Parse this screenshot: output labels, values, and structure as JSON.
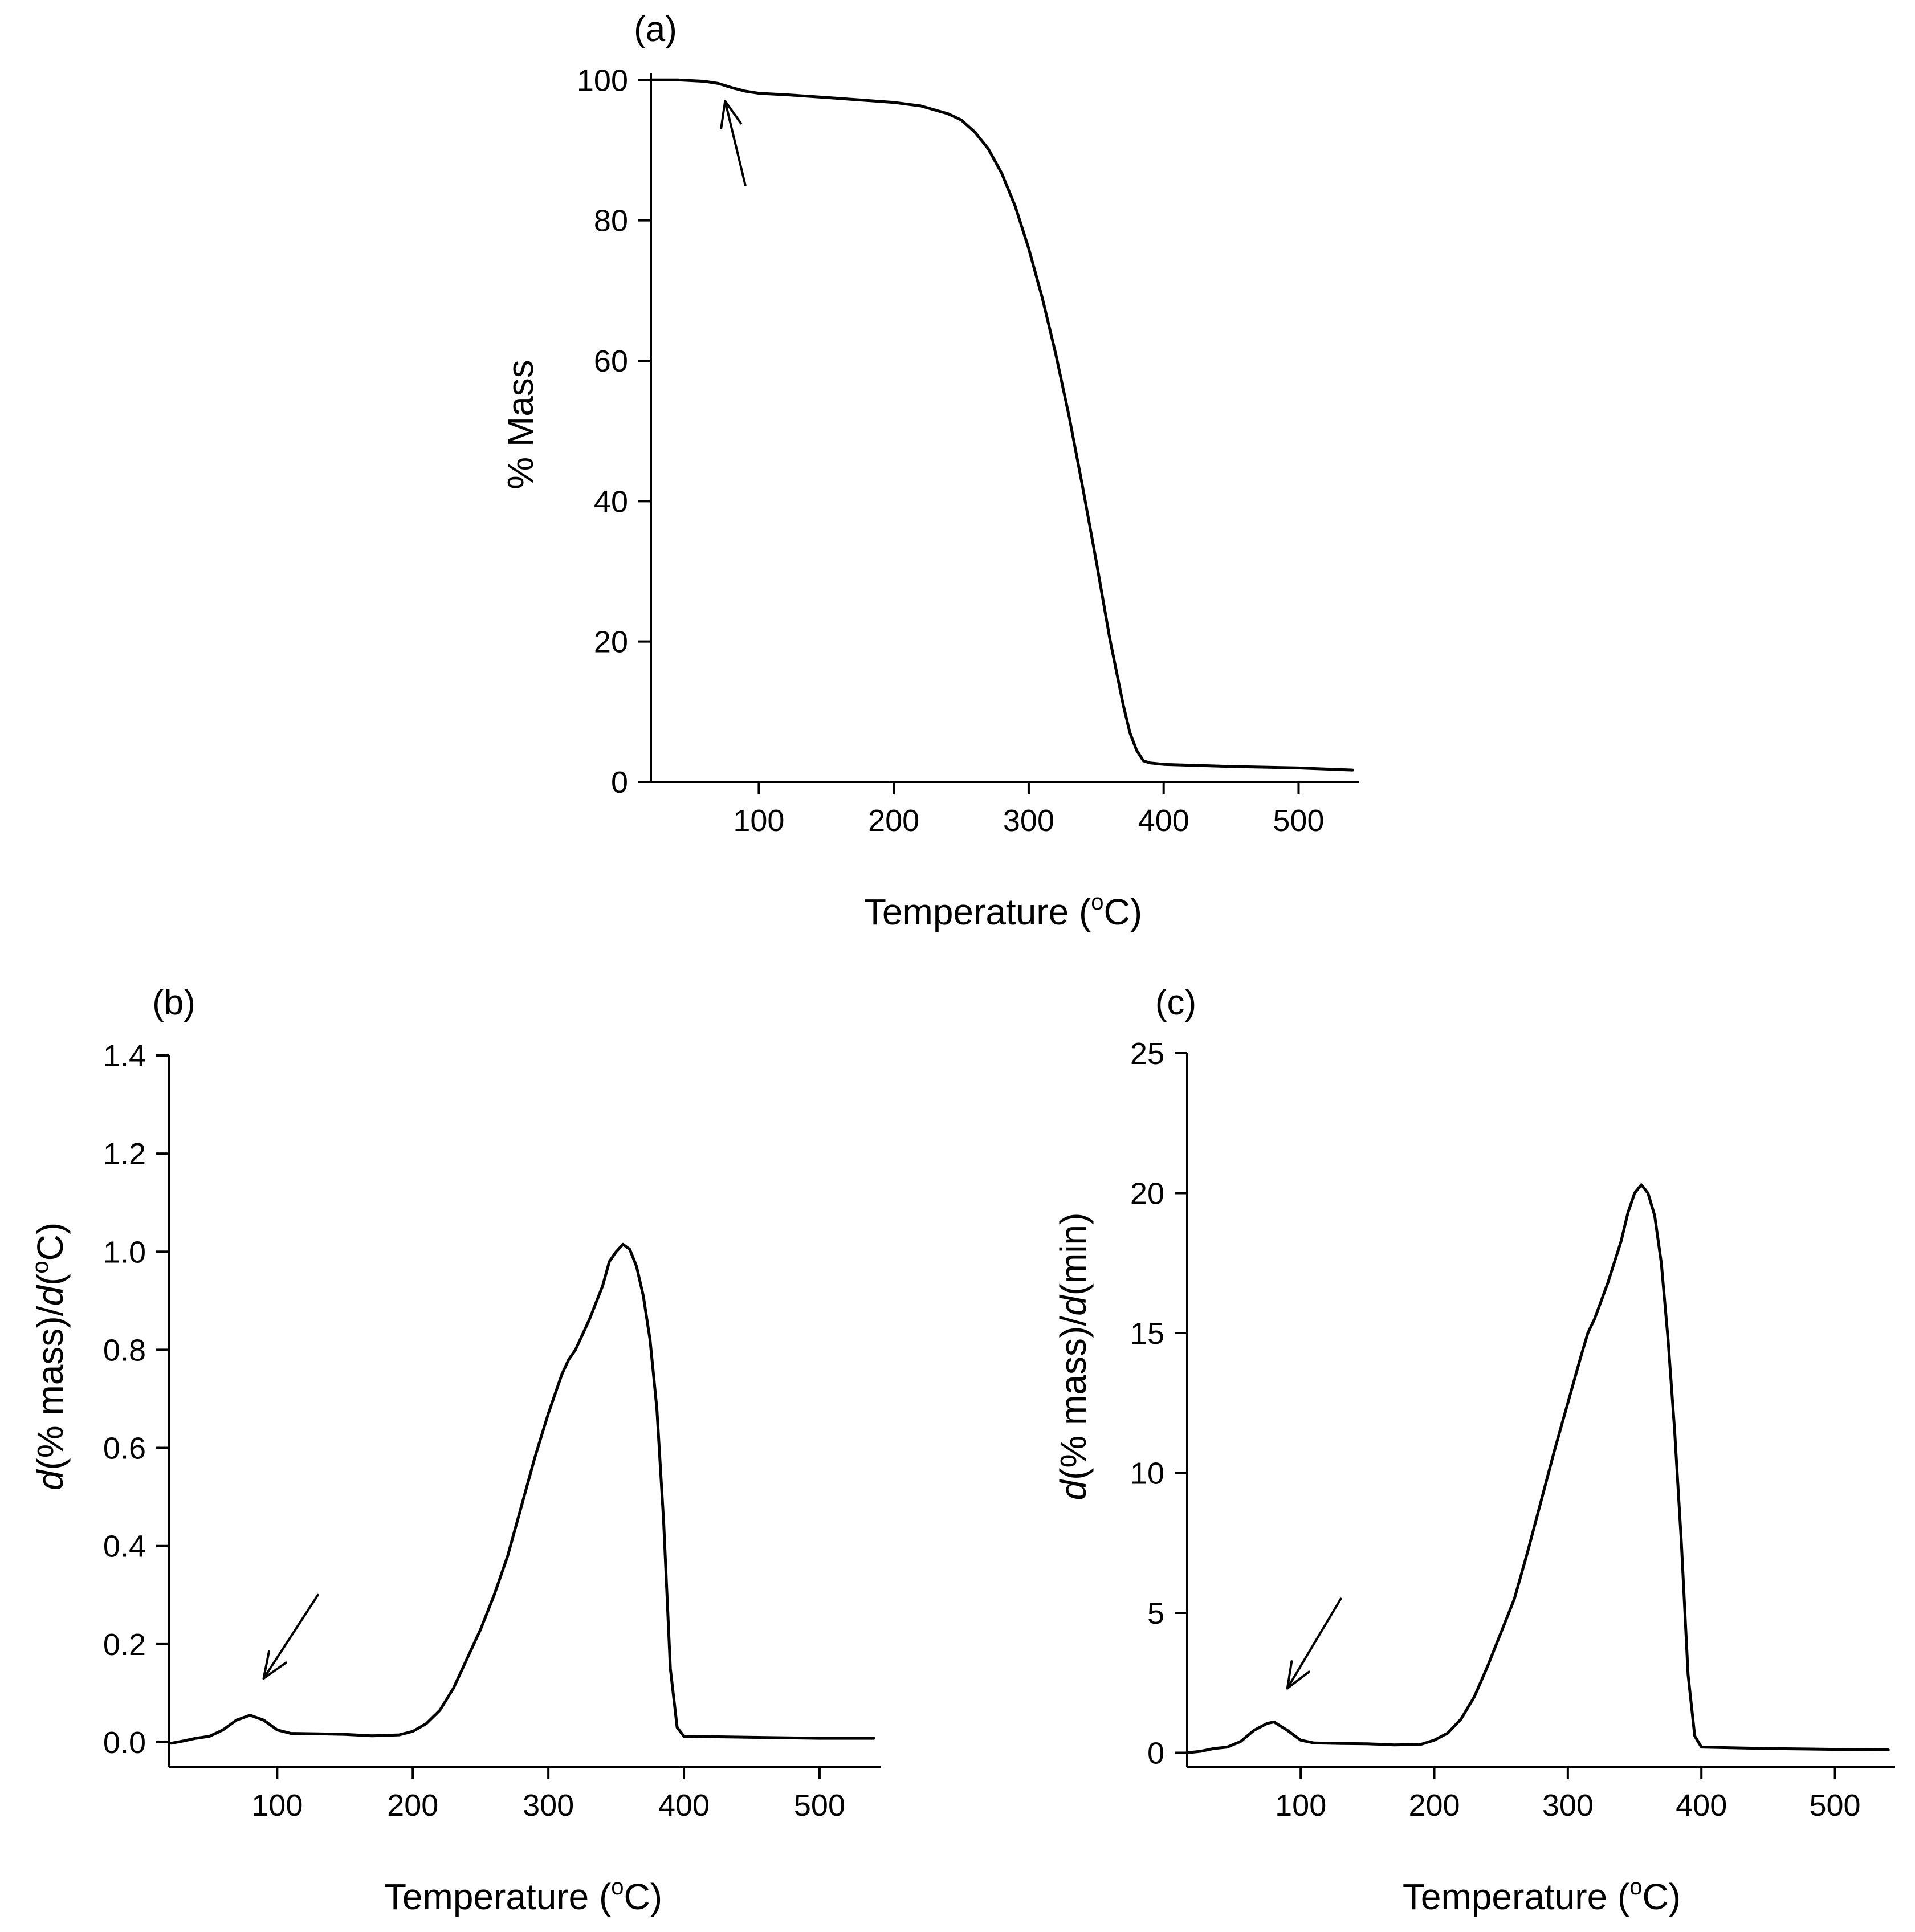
{
  "chart_data": [
    {
      "id": "a",
      "type": "line",
      "panel_label": "(a)",
      "xlabel": "Temperature (",
      "xlabel_sup": "o",
      "xlabel_end": "C)",
      "ylabel": "% Mass",
      "xlim": [
        20,
        545
      ],
      "ylim": [
        0,
        101
      ],
      "xticks": [
        100,
        200,
        300,
        400,
        500
      ],
      "xtick_labels": [
        "100",
        "200",
        "300",
        "400",
        "500"
      ],
      "yticks": [
        0,
        20,
        40,
        60,
        80,
        100
      ],
      "ytick_labels": [
        "0",
        "20",
        "40",
        "60",
        "80",
        "100"
      ],
      "series": [
        {
          "name": "% Mass",
          "x": [
            20,
            40,
            60,
            70,
            80,
            90,
            100,
            120,
            150,
            200,
            220,
            240,
            250,
            260,
            270,
            280,
            290,
            300,
            310,
            320,
            330,
            340,
            350,
            360,
            370,
            375,
            380,
            385,
            390,
            400,
            450,
            500,
            540
          ],
          "y": [
            100,
            100,
            99.8,
            99.5,
            98.9,
            98.4,
            98.1,
            97.9,
            97.5,
            96.8,
            96.3,
            95.2,
            94.3,
            92.6,
            90.2,
            86.7,
            82.0,
            76.0,
            69.0,
            61.0,
            52.0,
            42.0,
            31.5,
            20.5,
            11.0,
            7.0,
            4.5,
            3.0,
            2.7,
            2.5,
            2.2,
            2.0,
            1.7
          ]
        }
      ],
      "annotation": {
        "type": "arrow",
        "from": [
          90,
          85
        ],
        "to": [
          75,
          97
        ]
      }
    },
    {
      "id": "b",
      "type": "line",
      "panel_label": "(b)",
      "xlabel": "Temperature (",
      "xlabel_sup": "o",
      "xlabel_end": "C)",
      "ylabel_prefix": "d",
      "ylabel_mid": "(% mass)/",
      "ylabel_d2": "d",
      "ylabel_paren": "(",
      "ylabel_sup": "o",
      "ylabel_end": "C)",
      "xlim": [
        20,
        545
      ],
      "ylim": [
        -0.05,
        1.4
      ],
      "xticks": [
        100,
        200,
        300,
        400,
        500
      ],
      "xtick_labels": [
        "100",
        "200",
        "300",
        "400",
        "500"
      ],
      "yticks": [
        0.0,
        0.2,
        0.4,
        0.6,
        0.8,
        1.0,
        1.2,
        1.4
      ],
      "ytick_labels": [
        "0.0",
        "0.2",
        "0.4",
        "0.6",
        "0.8",
        "1.0",
        "1.2",
        "1.4"
      ],
      "series": [
        {
          "name": "d(% mass)/d(oC)",
          "x": [
            22,
            30,
            40,
            50,
            60,
            70,
            80,
            90,
            100,
            110,
            130,
            150,
            170,
            190,
            200,
            210,
            220,
            230,
            240,
            250,
            260,
            270,
            280,
            290,
            300,
            310,
            315,
            320,
            330,
            340,
            345,
            350,
            355,
            360,
            365,
            370,
            375,
            380,
            385,
            390,
            395,
            400,
            450,
            500,
            540
          ],
          "y": [
            -0.002,
            0.002,
            0.008,
            0.012,
            0.025,
            0.045,
            0.055,
            0.045,
            0.025,
            0.018,
            0.017,
            0.016,
            0.013,
            0.015,
            0.022,
            0.038,
            0.065,
            0.11,
            0.17,
            0.23,
            0.3,
            0.38,
            0.48,
            0.58,
            0.67,
            0.75,
            0.78,
            0.8,
            0.86,
            0.93,
            0.98,
            1.0,
            1.015,
            1.005,
            0.97,
            0.91,
            0.82,
            0.68,
            0.45,
            0.15,
            0.03,
            0.012,
            0.01,
            0.008,
            0.008
          ]
        }
      ],
      "annotation": {
        "type": "arrow",
        "from": [
          130,
          0.3
        ],
        "to": [
          90,
          0.13
        ]
      }
    },
    {
      "id": "c",
      "type": "line",
      "panel_label": "(c)",
      "xlabel": "Temperature (",
      "xlabel_sup": "o",
      "xlabel_end": "C)",
      "ylabel_prefix": "d",
      "ylabel_mid": "(% mass)/",
      "ylabel_d2": "d",
      "ylabel_end": "(min)",
      "xlim": [
        15,
        545
      ],
      "ylim": [
        -0.5,
        25
      ],
      "xticks": [
        100,
        200,
        300,
        400,
        500
      ],
      "xtick_labels": [
        "100",
        "200",
        "300",
        "400",
        "500"
      ],
      "yticks": [
        0,
        5,
        10,
        15,
        20,
        25
      ],
      "ytick_labels": [
        "0",
        "5",
        "10",
        "15",
        "20",
        "25"
      ],
      "series": [
        {
          "name": "d(% mass)/d(min)",
          "x": [
            15,
            25,
            35,
            45,
            55,
            65,
            75,
            80,
            90,
            100,
            110,
            130,
            150,
            170,
            190,
            200,
            210,
            220,
            230,
            240,
            250,
            260,
            270,
            280,
            290,
            300,
            310,
            315,
            320,
            330,
            340,
            345,
            350,
            355,
            360,
            365,
            370,
            375,
            380,
            385,
            390,
            395,
            400,
            450,
            500,
            540
          ],
          "y": [
            0.0,
            0.05,
            0.15,
            0.2,
            0.4,
            0.8,
            1.05,
            1.1,
            0.8,
            0.45,
            0.35,
            0.33,
            0.32,
            0.28,
            0.3,
            0.45,
            0.7,
            1.2,
            2.0,
            3.1,
            4.3,
            5.5,
            7.2,
            9.0,
            10.8,
            12.5,
            14.2,
            15.0,
            15.5,
            16.8,
            18.3,
            19.3,
            20.0,
            20.3,
            20.0,
            19.2,
            17.5,
            14.8,
            11.5,
            7.5,
            2.8,
            0.6,
            0.2,
            0.15,
            0.12,
            0.1
          ]
        }
      ],
      "annotation": {
        "type": "arrow",
        "from": [
          130,
          5.5
        ],
        "to": [
          90,
          2.3
        ]
      }
    }
  ]
}
